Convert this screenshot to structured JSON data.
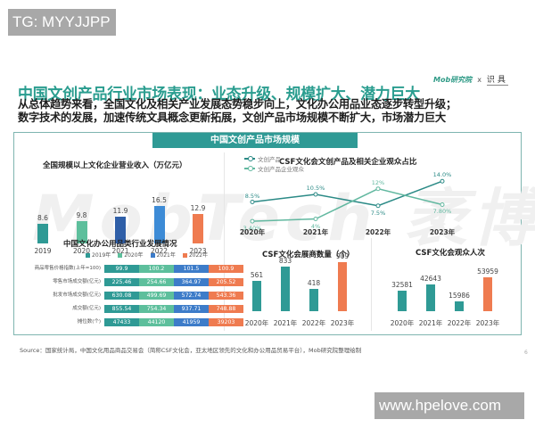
{
  "watermarks": {
    "top_left": "TG: MYYJJPP",
    "bottom_right": "www.hpelove.com",
    "background": "MobTech 袤博"
  },
  "logos": {
    "mob": "Mob研究院",
    "separator": "x",
    "partner": "识具"
  },
  "title": "中国文创产品行业市场表现：业态升级、规模扩大、潜力巨大",
  "subtitle": {
    "line1": "从总体趋势来看，全国文化及相关产业发展态势稳步向上，文化办公用品业态逐步转型升级；",
    "line2": "数字技术的发展，加速传统文具概念更新拓展，文创产品市场规模不断扩大，市场潜力巨大"
  },
  "panel": {
    "header": "中国文创产品市场规模"
  },
  "source": "Source：国家统计局，中国文化用品商品交易会（简称CSF文化会，亚太地区领先的文化和办公用品贸易平台），Mob研究院整理绘制",
  "page_number": "6",
  "colors": {
    "teal": "#2f9a95",
    "green": "#5dbf9c",
    "blue": "#3d7cc9",
    "orange": "#ef7b50",
    "dark_blue": "#2f5fa8",
    "title_teal": "#2a9d8f"
  },
  "chart_data": [
    {
      "id": "revenue",
      "type": "bar",
      "title": "全国规模以上文化企业营业收入（万亿元）",
      "categories": [
        "2019",
        "2020",
        "2021",
        "2022",
        "2023"
      ],
      "values": [
        "8.6",
        "9.8",
        "11.9",
        "16.5",
        "12.9"
      ],
      "colors": [
        "#2f9a95",
        "#5dbf9c",
        "#2f5fa8",
        "#3d8bd6",
        "#ef7b50"
      ],
      "xlabel": "",
      "ylabel": "万亿元"
    },
    {
      "id": "audience_share",
      "type": "line",
      "title": "CSF文化会文创产品及相关企业观众占比",
      "categories": [
        "2020年",
        "2021年",
        "2022年",
        "2023年"
      ],
      "series": [
        {
          "name": "文创产品",
          "values": [
            8.5,
            10.5,
            7.5,
            14.0
          ],
          "labels": [
            "8.5%",
            "10.5%",
            "7.5%",
            "14.0%"
          ],
          "color": "#2b8a86"
        },
        {
          "name": "文创产品企业观众",
          "values": [
            3.4,
            4,
            12,
            7.8
          ],
          "labels": [
            "3.40%",
            "4%",
            "12%",
            "7.80%"
          ],
          "color": "#62b8a0"
        }
      ],
      "legend_position": "top-left"
    },
    {
      "id": "office_supplies",
      "type": "table",
      "title": "中国文化办公用品类行业发展情况",
      "legend": [
        "2019年",
        "2020年",
        "2021年",
        "2022年"
      ],
      "rows": [
        {
          "label": "商品零售价格指数(上年=100)",
          "values": [
            "99.9",
            "100.2",
            "101.5",
            "100.9"
          ]
        },
        {
          "label": "零售市场成交额(亿元)",
          "values": [
            "225.46",
            "254.66",
            "364.97",
            "205.52"
          ]
        },
        {
          "label": "批发市场成交额(亿元)",
          "values": [
            "630.08",
            "499.69",
            "572.74",
            "543.36"
          ]
        },
        {
          "label": "成交额(亿元)",
          "values": [
            "855.54",
            "754.34",
            "937.71",
            "748.88"
          ]
        },
        {
          "label": "摊位数(个)",
          "values": [
            "47433",
            "44120",
            "41959",
            "39203"
          ]
        }
      ]
    },
    {
      "id": "exhibitors",
      "type": "bar",
      "title": "CSF文化会展商数量（个）",
      "categories": [
        "2020年",
        "2021年",
        "2022年",
        "2023年"
      ],
      "values": [
        561,
        833,
        418,
        909
      ]
    },
    {
      "id": "visitors",
      "type": "bar",
      "title": "CSF文化会观众人次",
      "categories": [
        "2020年",
        "2021年",
        "2022年",
        "2023年"
      ],
      "values": [
        32581,
        42643,
        15986,
        53959
      ]
    }
  ]
}
